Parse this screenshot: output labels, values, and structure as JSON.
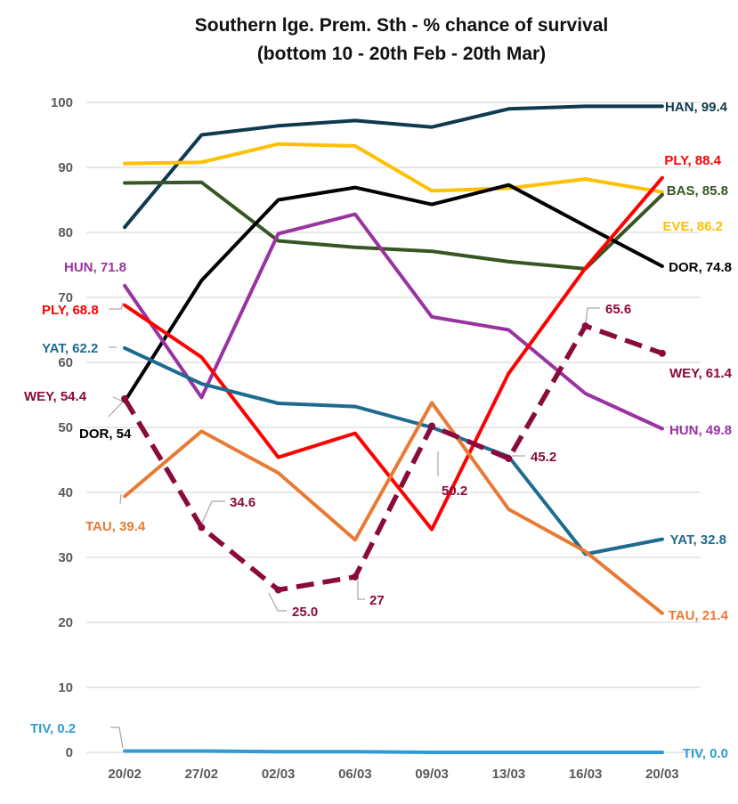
{
  "chart_data": {
    "type": "line",
    "title": "Southern lge. Prem. Sth - % chance of survival",
    "subtitle": "(bottom 10 - 20th Feb - 20th Mar)",
    "categories": [
      "20/02",
      "27/02",
      "02/03",
      "06/03",
      "09/03",
      "13/03",
      "16/03",
      "20/03"
    ],
    "ylim": [
      0,
      100
    ],
    "yticks": [
      0,
      10,
      20,
      30,
      40,
      50,
      60,
      70,
      80,
      90,
      100
    ],
    "grid": true,
    "series": [
      {
        "name": "HAN",
        "color": "#0e3a4f",
        "dash": false,
        "values": [
          80.8,
          95.0,
          96.4,
          97.2,
          96.2,
          99.0,
          99.4,
          99.4
        ]
      },
      {
        "name": "EVE",
        "color": "#ffc000",
        "dash": false,
        "values": [
          90.6,
          90.8,
          93.6,
          93.3,
          86.4,
          86.8,
          88.2,
          86.2
        ]
      },
      {
        "name": "BAS",
        "color": "#375623",
        "dash": false,
        "values": [
          87.6,
          87.7,
          78.7,
          77.7,
          77.1,
          75.5,
          74.4,
          85.8
        ]
      },
      {
        "name": "DOR",
        "color": "#000000",
        "dash": false,
        "values": [
          54.0,
          72.6,
          85.0,
          86.9,
          84.3,
          87.3,
          81.0,
          74.8
        ]
      },
      {
        "name": "HUN",
        "color": "#9933a0",
        "dash": false,
        "values": [
          71.8,
          54.6,
          79.8,
          82.8,
          67.0,
          65.0,
          55.2,
          49.8
        ]
      },
      {
        "name": "PLY",
        "color": "#ff0000",
        "dash": false,
        "values": [
          68.8,
          60.8,
          45.4,
          49.1,
          34.3,
          58.3,
          74.5,
          88.4
        ]
      },
      {
        "name": "YAT",
        "color": "#1e6b8f",
        "dash": false,
        "values": [
          62.2,
          56.7,
          53.7,
          53.2,
          50.0,
          45.5,
          30.5,
          32.8
        ]
      },
      {
        "name": "TAU",
        "color": "#e97a34",
        "dash": false,
        "values": [
          39.4,
          49.4,
          43.0,
          32.7,
          53.8,
          37.4,
          30.9,
          21.4
        ]
      },
      {
        "name": "WEY",
        "color": "#8b0a3c",
        "dash": true,
        "values": [
          54.4,
          34.6,
          25.0,
          27.0,
          50.2,
          45.2,
          65.6,
          61.4
        ]
      },
      {
        "name": "TIV",
        "color": "#2e9bd6",
        "dash": false,
        "values": [
          0.2,
          0.2,
          0.1,
          0.1,
          0.0,
          0.0,
          0.0,
          0.0
        ]
      }
    ],
    "labels": [
      {
        "series": "HAN",
        "text": "HAN, 99.4"
      },
      {
        "series": "PLY",
        "text": "PLY, 88.4"
      },
      {
        "series": "BAS",
        "text": "BAS, 85.8"
      },
      {
        "series": "EVE",
        "text": "EVE, 86.2"
      },
      {
        "series": "DOR",
        "text": "DOR, 74.8"
      },
      {
        "series": "HUN",
        "text": "HUN, 71.8"
      },
      {
        "series": "PLY",
        "text": "PLY, 68.8"
      },
      {
        "series": "YAT",
        "text": "YAT, 62.2"
      },
      {
        "series": "WEY",
        "text": "WEY, 54.4"
      },
      {
        "series": "DOR",
        "text": "DOR, 54"
      },
      {
        "series": "TAU",
        "text": "TAU, 39.4"
      },
      {
        "series": "WEY",
        "text": "34.6"
      },
      {
        "series": "WEY",
        "text": "25.0"
      },
      {
        "series": "WEY",
        "text": "27"
      },
      {
        "series": "WEY",
        "text": "50.2"
      },
      {
        "series": "WEY",
        "text": "45.2"
      },
      {
        "series": "WEY",
        "text": "65.6"
      },
      {
        "series": "WEY",
        "text": "WEY, 61.4"
      },
      {
        "series": "HUN",
        "text": "HUN, 49.8"
      },
      {
        "series": "YAT",
        "text": "YAT, 32.8"
      },
      {
        "series": "TAU",
        "text": "TAU, 21.4"
      },
      {
        "series": "TIV",
        "text": "TIV, 0.2"
      },
      {
        "series": "TIV",
        "text": "TIV, 0.0"
      }
    ]
  }
}
